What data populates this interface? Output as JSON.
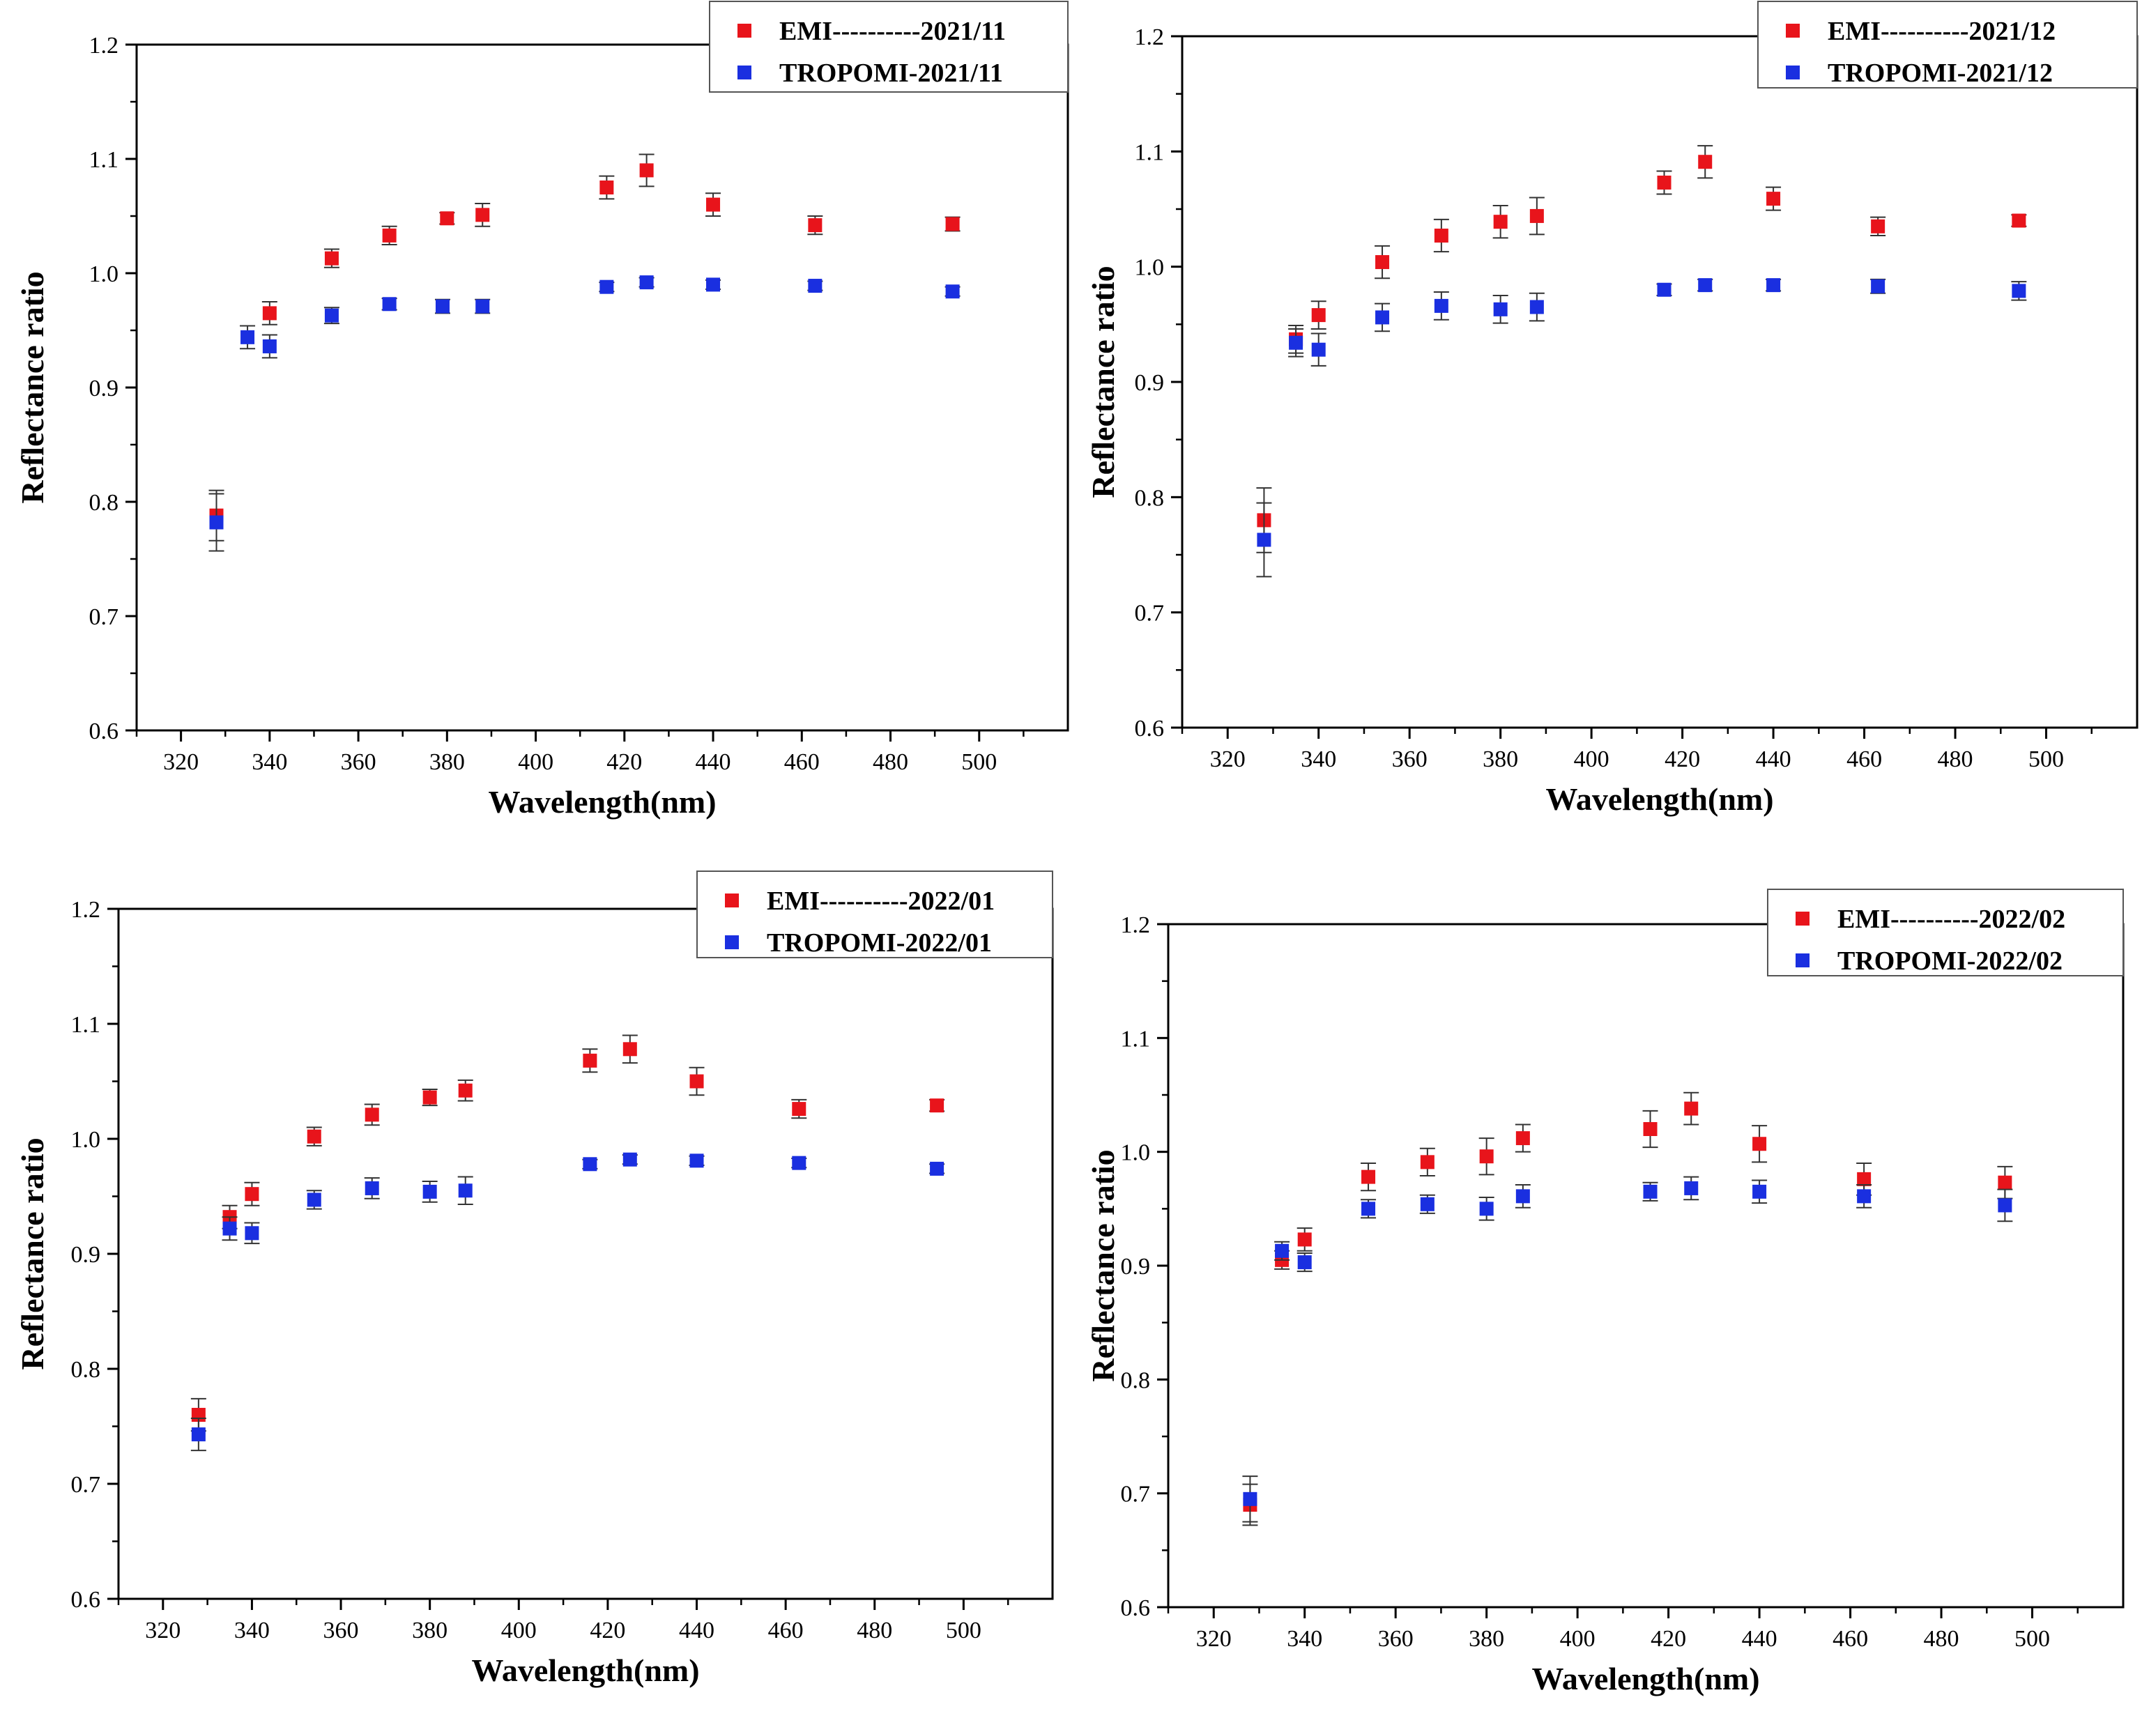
{
  "chart_data": [
    {
      "type": "scatter",
      "xlabel": "Wavelength(nm)",
      "ylabel": "Reflectance ratio",
      "xlim": [
        310,
        520
      ],
      "ylim": [
        0.6,
        1.2
      ],
      "xticks": [
        320,
        340,
        360,
        380,
        400,
        420,
        440,
        460,
        480,
        500
      ],
      "yticks": [
        0.6,
        0.7,
        0.8,
        0.9,
        1.0,
        1.1,
        1.2
      ],
      "ytick_labels": [
        "0.6",
        "0.7",
        "0.8",
        "0.9",
        "1.0",
        "1.1",
        "1.2"
      ],
      "legend_position": "top-right",
      "grid": false,
      "series": [
        {
          "name": "EMI----------2021/11",
          "color": "#e8141b",
          "x": [
            328,
            340,
            354,
            367,
            380,
            388,
            416,
            425,
            440,
            463,
            494
          ],
          "y": [
            0.788,
            0.965,
            1.013,
            1.033,
            1.048,
            1.051,
            1.075,
            1.09,
            1.06,
            1.042,
            1.043
          ],
          "err": [
            0.022,
            0.01,
            0.008,
            0.008,
            0.005,
            0.01,
            0.01,
            0.014,
            0.01,
            0.008,
            0.006
          ]
        },
        {
          "name": "TROPOMI-2021/11",
          "color": "#1a2fe0",
          "x": [
            328,
            335,
            340,
            354,
            367,
            379,
            388,
            416,
            425,
            440,
            463,
            494
          ],
          "y": [
            0.782,
            0.944,
            0.936,
            0.963,
            0.973,
            0.971,
            0.971,
            0.988,
            0.992,
            0.99,
            0.989,
            0.984
          ],
          "err": [
            0.025,
            0.01,
            0.01,
            0.007,
            0.005,
            0.006,
            0.006,
            0.004,
            0.004,
            0.004,
            0.004,
            0.004
          ]
        }
      ]
    },
    {
      "type": "scatter",
      "xlabel": "Wavelength(nm)",
      "ylabel": "Reflectance ratio",
      "xlim": [
        310,
        520
      ],
      "ylim": [
        0.6,
        1.2
      ],
      "xticks": [
        320,
        340,
        360,
        380,
        400,
        420,
        440,
        460,
        480,
        500
      ],
      "yticks": [
        0.6,
        0.7,
        0.8,
        0.9,
        1.0,
        1.1,
        1.2
      ],
      "ytick_labels": [
        "0.6",
        "0.7",
        "0.8",
        "0.9",
        "1.0",
        "1.1",
        "1.2"
      ],
      "legend_position": "top-right",
      "grid": false,
      "series": [
        {
          "name": "EMI----------2021/12",
          "color": "#e8141b",
          "x": [
            328,
            335,
            340,
            354,
            367,
            380,
            388,
            416,
            425,
            440,
            463,
            494
          ],
          "y": [
            0.78,
            0.937,
            0.958,
            1.004,
            1.027,
            1.039,
            1.044,
            1.073,
            1.091,
            1.059,
            1.035,
            1.04
          ],
          "err": [
            0.028,
            0.012,
            0.012,
            0.014,
            0.014,
            0.014,
            0.016,
            0.01,
            0.014,
            0.01,
            0.008,
            0.005
          ]
        },
        {
          "name": "TROPOMI-2021/12",
          "color": "#1a2fe0",
          "x": [
            328,
            335,
            340,
            354,
            367,
            380,
            388,
            416,
            425,
            440,
            463,
            494
          ],
          "y": [
            0.763,
            0.934,
            0.928,
            0.956,
            0.966,
            0.963,
            0.965,
            0.98,
            0.984,
            0.984,
            0.983,
            0.979
          ],
          "err": [
            0.032,
            0.012,
            0.014,
            0.012,
            0.012,
            0.012,
            0.012,
            0.005,
            0.005,
            0.005,
            0.006,
            0.008
          ]
        }
      ]
    },
    {
      "type": "scatter",
      "xlabel": "Wavelength(nm)",
      "ylabel": "Reflectance ratio",
      "xlim": [
        310,
        520
      ],
      "ylim": [
        0.6,
        1.2
      ],
      "xticks": [
        320,
        340,
        360,
        380,
        400,
        420,
        440,
        460,
        480,
        500
      ],
      "yticks": [
        0.6,
        0.7,
        0.8,
        0.9,
        1.0,
        1.1,
        1.2
      ],
      "ytick_labels": [
        "0.6",
        "0.7",
        "0.8",
        "0.9",
        "1.0",
        "1.1",
        "1.2"
      ],
      "legend_position": "top-right",
      "grid": false,
      "series": [
        {
          "name": "EMI----------2022/01",
          "color": "#e8141b",
          "x": [
            328,
            335,
            340,
            354,
            367,
            380,
            388,
            416,
            425,
            440,
            463,
            494
          ],
          "y": [
            0.76,
            0.932,
            0.952,
            1.002,
            1.021,
            1.036,
            1.042,
            1.068,
            1.078,
            1.05,
            1.026,
            1.029
          ],
          "err": [
            0.014,
            0.01,
            0.01,
            0.008,
            0.009,
            0.007,
            0.009,
            0.01,
            0.012,
            0.012,
            0.008,
            0.005
          ]
        },
        {
          "name": "TROPOMI-2022/01",
          "color": "#1a2fe0",
          "x": [
            328,
            335,
            340,
            354,
            367,
            380,
            388,
            416,
            425,
            440,
            463,
            494
          ],
          "y": [
            0.743,
            0.922,
            0.918,
            0.947,
            0.957,
            0.954,
            0.955,
            0.978,
            0.982,
            0.981,
            0.979,
            0.974
          ],
          "err": [
            0.014,
            0.01,
            0.009,
            0.008,
            0.009,
            0.009,
            0.012,
            0.004,
            0.004,
            0.004,
            0.004,
            0.004
          ]
        }
      ]
    },
    {
      "type": "scatter",
      "xlabel": "Wavelength(nm)",
      "ylabel": "Reflectance ratio",
      "xlim": [
        310,
        520
      ],
      "ylim": [
        0.6,
        1.2
      ],
      "xticks": [
        320,
        340,
        360,
        380,
        400,
        420,
        440,
        460,
        480,
        500
      ],
      "yticks": [
        0.6,
        0.7,
        0.8,
        0.9,
        1.0,
        1.1,
        1.2
      ],
      "ytick_labels": [
        "0.6",
        "0.7",
        "0.8",
        "0.9",
        "1.0",
        "1.1",
        "1.2"
      ],
      "legend_position": "top-right",
      "grid": false,
      "series": [
        {
          "name": "EMI----------2022/02",
          "color": "#e8141b",
          "x": [
            328,
            335,
            340,
            354,
            367,
            380,
            388,
            416,
            425,
            440,
            463,
            494
          ],
          "y": [
            0.69,
            0.905,
            0.923,
            0.978,
            0.991,
            0.996,
            1.012,
            1.02,
            1.038,
            1.007,
            0.976,
            0.973
          ],
          "err": [
            0.018,
            0.008,
            0.01,
            0.012,
            0.012,
            0.016,
            0.012,
            0.016,
            0.014,
            0.016,
            0.014,
            0.014
          ]
        },
        {
          "name": "TROPOMI-2022/02",
          "color": "#1a2fe0",
          "x": [
            328,
            335,
            340,
            354,
            367,
            380,
            388,
            416,
            425,
            440,
            463,
            494
          ],
          "y": [
            0.695,
            0.913,
            0.903,
            0.95,
            0.954,
            0.95,
            0.961,
            0.965,
            0.968,
            0.965,
            0.961,
            0.953
          ],
          "err": [
            0.02,
            0.008,
            0.008,
            0.008,
            0.008,
            0.01,
            0.01,
            0.008,
            0.01,
            0.01,
            0.01,
            0.014
          ]
        }
      ]
    }
  ]
}
